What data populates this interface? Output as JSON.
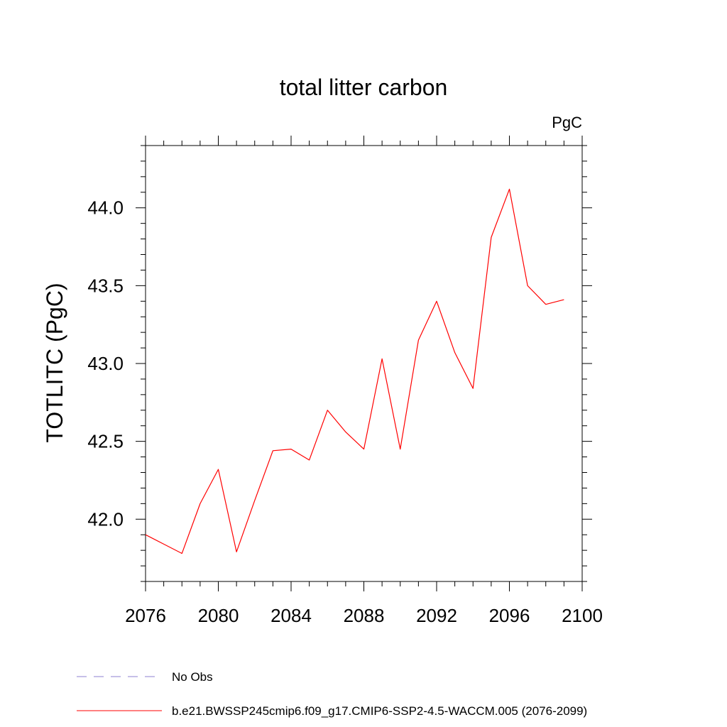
{
  "chart_data": {
    "type": "line",
    "title": "total litter carbon",
    "units_label": "PgC",
    "xlabel": "",
    "ylabel": "TOTLITC  (PgC)",
    "xlim": [
      2076,
      2100
    ],
    "ylim": [
      41.6,
      44.4
    ],
    "x_ticks": [
      2076,
      2080,
      2084,
      2088,
      2092,
      2096,
      2100
    ],
    "y_ticks": [
      42.0,
      42.5,
      43.0,
      43.5,
      44.0
    ],
    "y_tick_labels": [
      "42.0",
      "42.5",
      "43.0",
      "43.5",
      "44.0"
    ],
    "grid": false,
    "legend_position": "bottom",
    "series": [
      {
        "name": "No Obs",
        "color": "#8c82d2",
        "dash": "dashed",
        "x": [],
        "values": []
      },
      {
        "name": "b.e21.BWSSP245cmip6.f09_g17.CMIP6-SSP2-4.5-WACCM.005 (2076-2099)",
        "color": "#ff0000",
        "dash": "solid",
        "x": [
          2076,
          2077,
          2078,
          2079,
          2080,
          2081,
          2082,
          2083,
          2084,
          2085,
          2086,
          2087,
          2088,
          2089,
          2090,
          2091,
          2092,
          2093,
          2094,
          2095,
          2096,
          2097,
          2098,
          2099
        ],
        "values": [
          41.9,
          41.84,
          41.78,
          42.1,
          42.32,
          41.79,
          42.12,
          42.44,
          42.45,
          42.38,
          42.7,
          42.56,
          42.45,
          43.03,
          42.45,
          43.15,
          43.4,
          43.07,
          42.84,
          43.81,
          44.12,
          43.5,
          43.38,
          43.41
        ]
      }
    ]
  }
}
